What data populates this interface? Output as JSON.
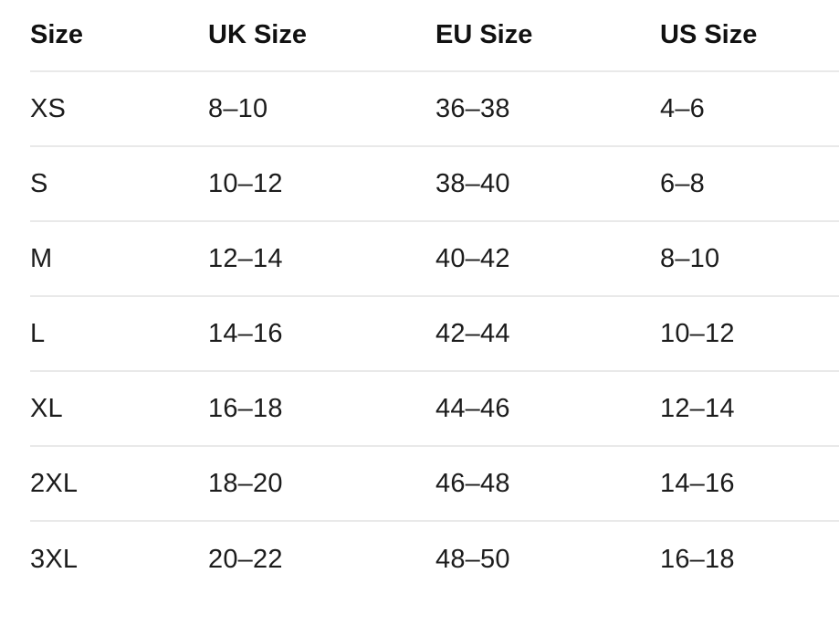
{
  "table": {
    "title": "clothing-size-conversion-chart",
    "colors": {
      "background": "#ffffff",
      "header_text": "#111111",
      "body_text": "#1c1c1c",
      "divider": "#e9e9e9"
    },
    "columns": [
      "Size",
      "UK Size",
      "EU Size",
      "US Size"
    ],
    "rows": [
      [
        "XS",
        "8–10",
        "36–38",
        "4–6"
      ],
      [
        "S",
        "10–12",
        "38–40",
        "6–8"
      ],
      [
        "M",
        "12–14",
        "40–42",
        "8–10"
      ],
      [
        "L",
        "14–16",
        "42–44",
        "10–12"
      ],
      [
        "XL",
        "16–18",
        "44–46",
        "12–14"
      ],
      [
        "2XL",
        "18–20",
        "46–48",
        "14–16"
      ],
      [
        "3XL",
        "20–22",
        "48–50",
        "16–18"
      ]
    ]
  }
}
